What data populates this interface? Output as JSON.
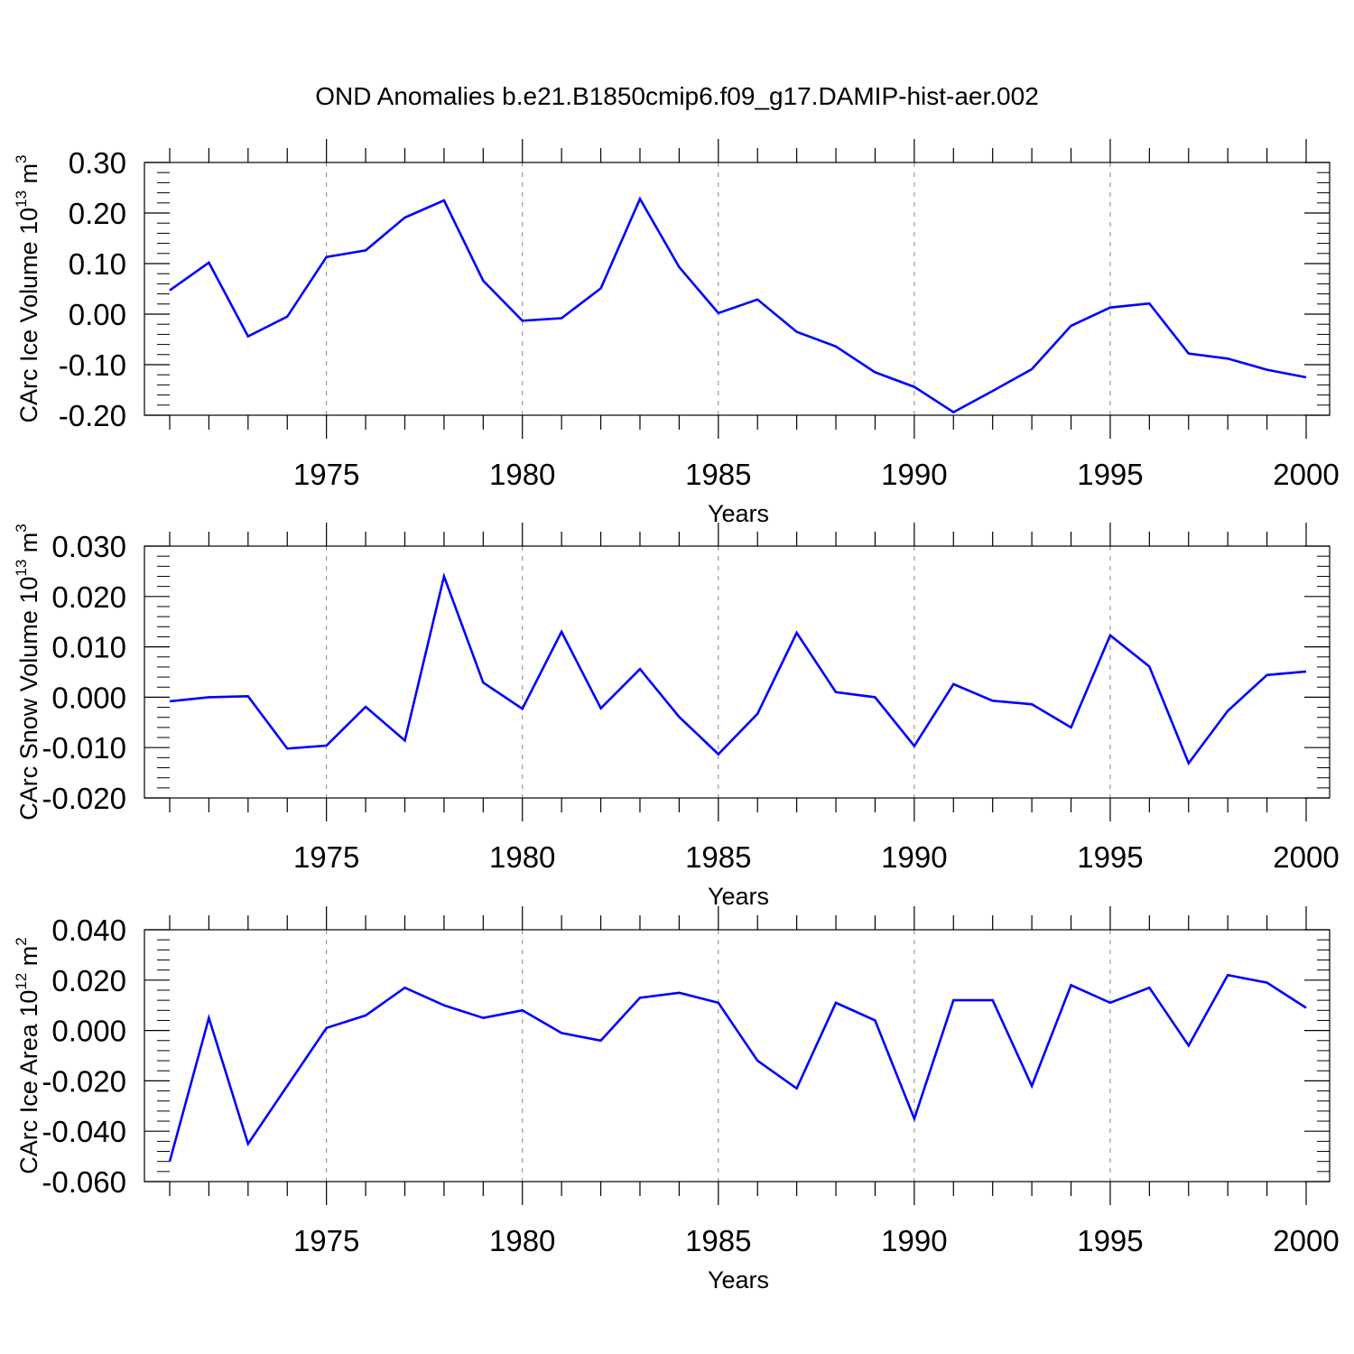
{
  "title": "OND Anomalies b.e21.B1850cmip6.f09_g17.DAMIP-hist-aer.002",
  "colors": {
    "line": "#0000ff",
    "axis": "#000000",
    "grid": "#888888"
  },
  "chart_data": [
    {
      "type": "line",
      "ylabel": {
        "text": "CArc Ice Volume 10",
        "sup": "13",
        "unit": " m",
        "unit_sup": "3"
      },
      "xlabel": "Years",
      "xlim": [
        1971,
        2000
      ],
      "ylim": [
        -0.2,
        0.3
      ],
      "yticks": [
        -0.2,
        -0.1,
        0.0,
        0.1,
        0.2,
        0.3
      ],
      "ytick_labels": [
        "-0.20",
        "-0.10",
        "0.00",
        "0.10",
        "0.20",
        "0.30"
      ],
      "xticks": [
        1975,
        1980,
        1985,
        1990,
        1995,
        2000
      ],
      "xtick_labels": [
        "1975",
        "1980",
        "1985",
        "1990",
        "1995",
        "2000"
      ],
      "grid": "vertical dashed at labeled years",
      "x": [
        1971,
        1972,
        1973,
        1974,
        1975,
        1976,
        1977,
        1978,
        1979,
        1980,
        1981,
        1982,
        1983,
        1984,
        1985,
        1986,
        1987,
        1988,
        1989,
        1990,
        1991,
        1992,
        1993,
        1994,
        1995,
        1996,
        1997,
        1998,
        1999,
        2000
      ],
      "series": [
        {
          "values": [
            0.047,
            0.102,
            -0.044,
            -0.005,
            0.113,
            0.126,
            0.191,
            0.225,
            0.066,
            -0.013,
            -0.008,
            0.051,
            0.228,
            0.093,
            0.002,
            0.029,
            -0.035,
            -0.064,
            -0.115,
            -0.144,
            -0.194,
            -0.152,
            -0.109,
            -0.023,
            0.013,
            0.021,
            -0.078,
            -0.088,
            -0.11,
            -0.125
          ]
        }
      ]
    },
    {
      "type": "line",
      "ylabel": {
        "text": "CArc Snow Volume 10",
        "sup": "13",
        "unit": " m",
        "unit_sup": "3"
      },
      "xlabel": "Years",
      "xlim": [
        1971,
        2000
      ],
      "ylim": [
        -0.02,
        0.03
      ],
      "yticks": [
        -0.02,
        -0.01,
        0.0,
        0.01,
        0.02,
        0.03
      ],
      "ytick_labels": [
        "-0.020",
        "-0.010",
        "0.000",
        "0.010",
        "0.020",
        "0.030"
      ],
      "xticks": [
        1975,
        1980,
        1985,
        1990,
        1995,
        2000
      ],
      "xtick_labels": [
        "1975",
        "1980",
        "1985",
        "1990",
        "1995",
        "2000"
      ],
      "grid": "vertical dashed at labeled years",
      "x": [
        1971,
        1972,
        1973,
        1974,
        1975,
        1976,
        1977,
        1978,
        1979,
        1980,
        1981,
        1982,
        1983,
        1984,
        1985,
        1986,
        1987,
        1988,
        1989,
        1990,
        1991,
        1992,
        1993,
        1994,
        1995,
        1996,
        1997,
        1998,
        1999,
        2000
      ],
      "series": [
        {
          "values": [
            -0.0008,
            0.0,
            0.0002,
            -0.0102,
            -0.0096,
            -0.0019,
            -0.0086,
            0.024,
            0.0029,
            -0.0023,
            0.013,
            -0.0022,
            0.0056,
            -0.0039,
            -0.0113,
            -0.0033,
            0.0128,
            0.001,
            0.0,
            -0.0097,
            0.0026,
            -0.0007,
            -0.0014,
            -0.006,
            0.0123,
            0.0061,
            -0.0131,
            -0.0027,
            0.0044,
            0.0051
          ]
        }
      ]
    },
    {
      "type": "line",
      "ylabel": {
        "text": "CArc Ice Area 10",
        "sup": "12",
        "unit": " m",
        "unit_sup": "2"
      },
      "xlabel": "Years",
      "xlim": [
        1971,
        2000
      ],
      "ylim": [
        -0.06,
        0.04
      ],
      "yticks": [
        -0.06,
        -0.04,
        -0.02,
        0.0,
        0.02,
        0.04
      ],
      "ytick_labels": [
        "-0.060",
        "-0.040",
        "-0.020",
        "0.000",
        "0.020",
        "0.040"
      ],
      "xticks": [
        1975,
        1980,
        1985,
        1990,
        1995,
        2000
      ],
      "xtick_labels": [
        "1975",
        "1980",
        "1985",
        "1990",
        "1995",
        "2000"
      ],
      "grid": "vertical dashed at labeled years",
      "x": [
        1971,
        1972,
        1973,
        1974,
        1975,
        1976,
        1977,
        1978,
        1979,
        1980,
        1981,
        1982,
        1983,
        1984,
        1985,
        1986,
        1987,
        1988,
        1989,
        1990,
        1991,
        1992,
        1993,
        1994,
        1995,
        1996,
        1997,
        1998,
        1999,
        2000
      ],
      "series": [
        {
          "values": [
            -0.052,
            0.005,
            -0.045,
            -0.022,
            0.001,
            0.006,
            0.017,
            0.01,
            0.005,
            0.008,
            -0.001,
            -0.004,
            0.013,
            0.015,
            0.011,
            -0.012,
            -0.023,
            0.011,
            0.004,
            -0.035,
            0.012,
            0.012,
            -0.022,
            0.018,
            0.011,
            0.017,
            -0.006,
            0.022,
            0.019,
            0.009
          ]
        }
      ]
    }
  ]
}
